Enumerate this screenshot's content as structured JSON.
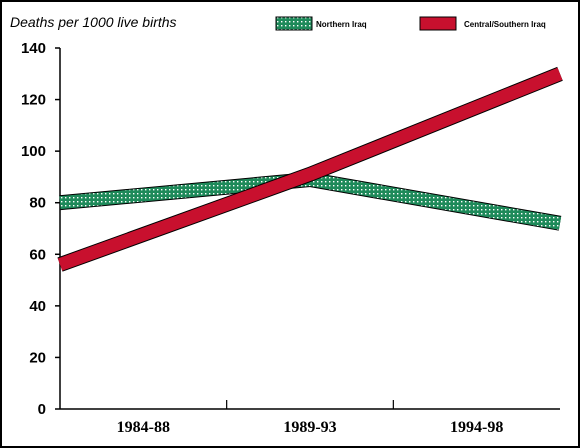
{
  "chart_data": {
    "type": "line",
    "ylabel": "Deaths per 1000 live births",
    "categories": [
      "1984-88",
      "1989-93",
      "1994-98"
    ],
    "ylim": [
      0,
      140
    ],
    "yticks": [
      0,
      20,
      40,
      60,
      80,
      100,
      120,
      140
    ],
    "grid": false,
    "legend_position": "top-right",
    "series": [
      {
        "name": "Northern Iraq",
        "values": [
          80,
          89,
          72
        ],
        "color": "#1e8a5a",
        "pattern": "dotted"
      },
      {
        "name": "Central/Southern Iraq",
        "values": [
          56,
          91,
          130
        ],
        "color": "#c8102e",
        "pattern": "solid"
      }
    ]
  }
}
